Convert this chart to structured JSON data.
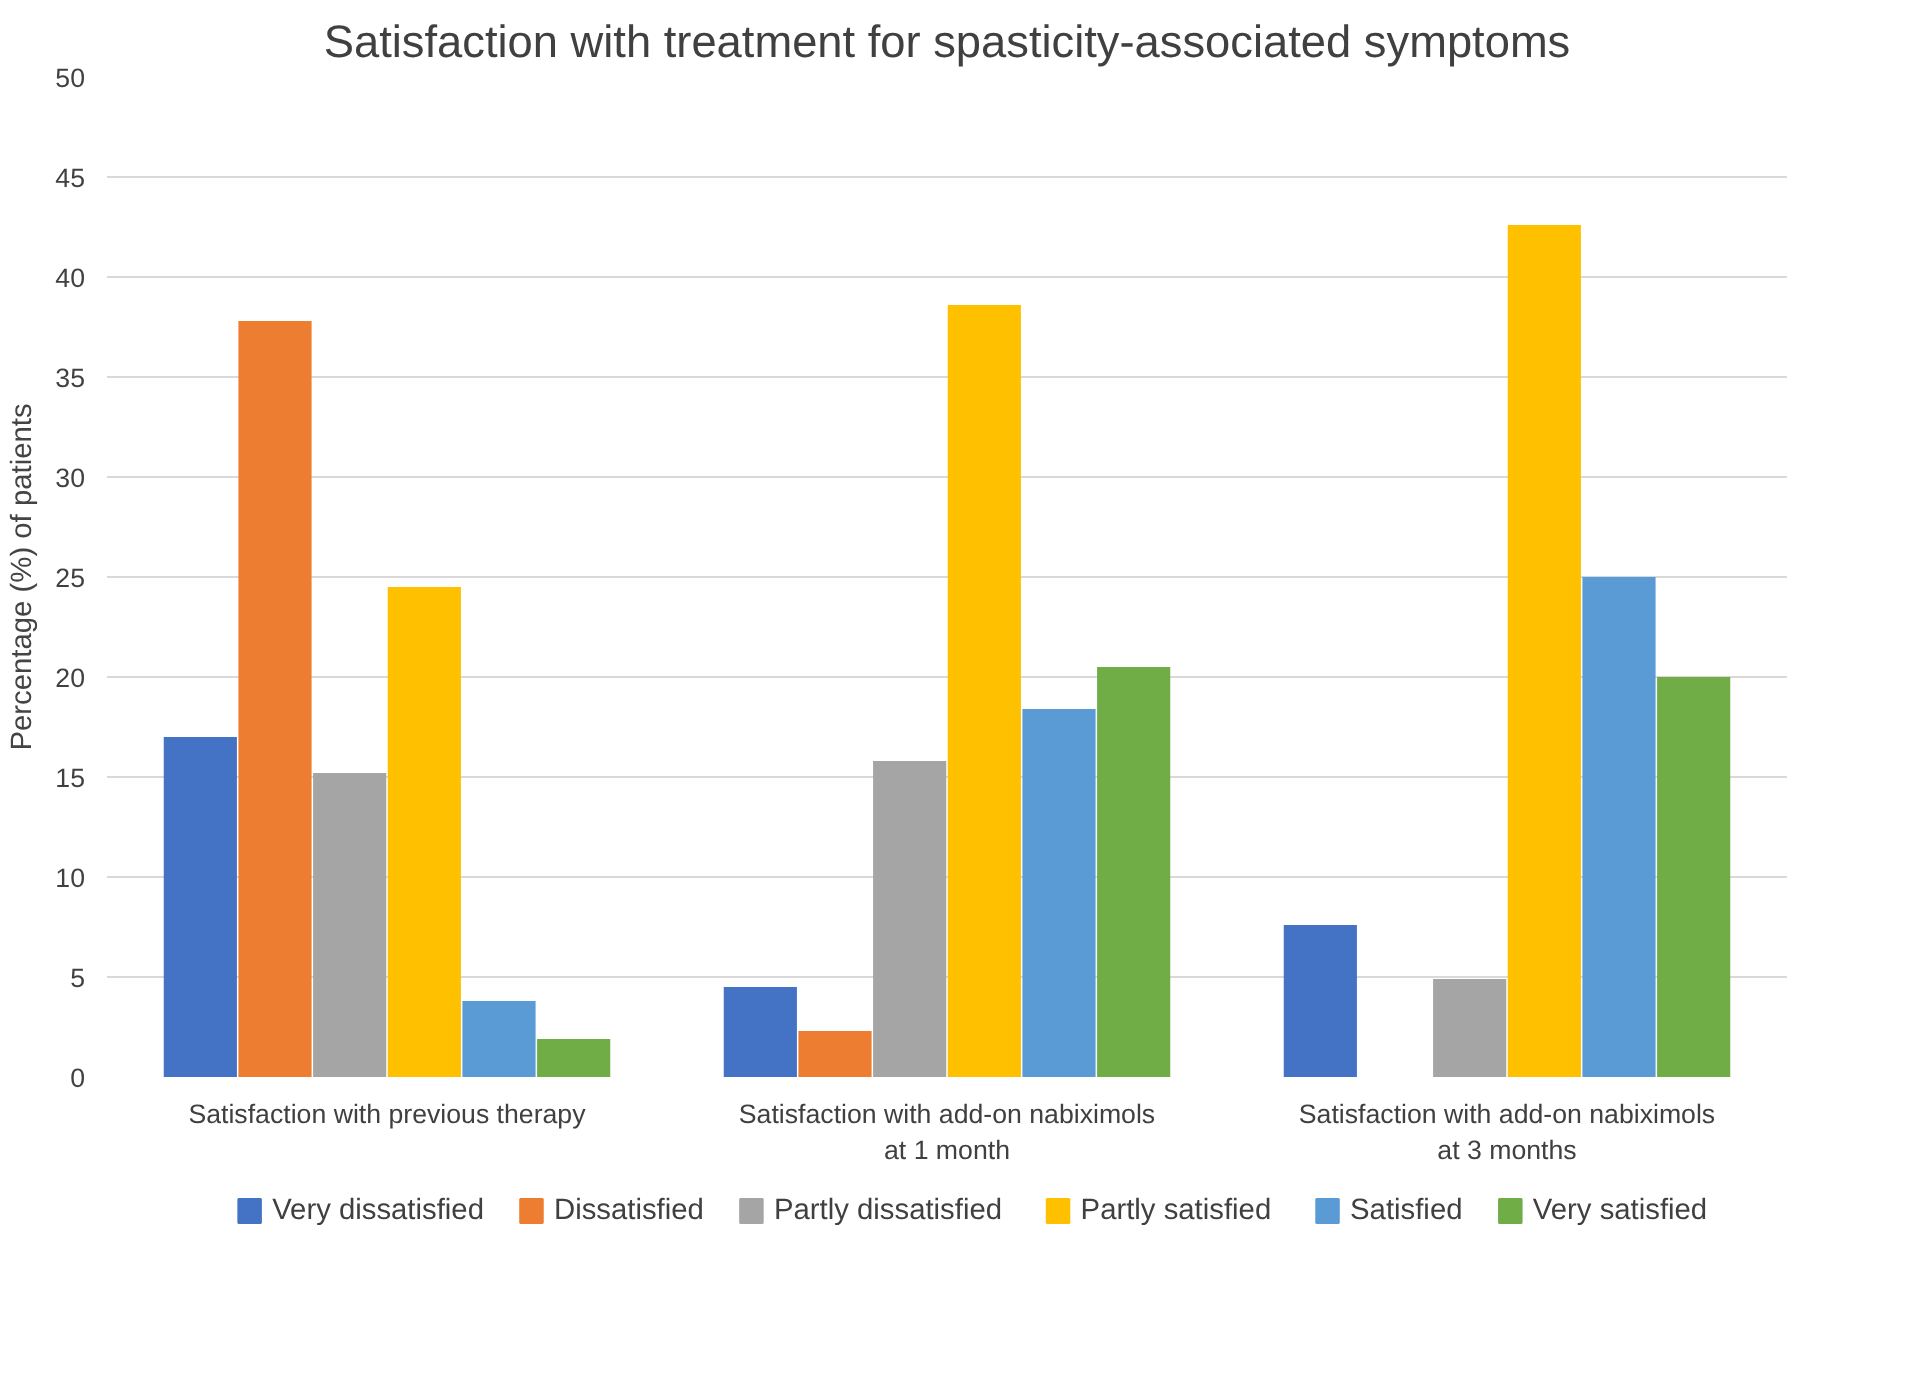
{
  "chart_data": {
    "type": "bar",
    "title": "Satisfaction with treatment for spasticity-associated symptoms",
    "ylabel": "Percentage (%) of patients",
    "categories": [
      "Satisfaction with previous therapy",
      "Satisfaction with add-on nabiximols\nat 1 month",
      "Satisfaction with add-on nabiximols\nat 3 months"
    ],
    "series": [
      {
        "name": "Very dissatisfied",
        "color": "#4472c4",
        "values": [
          17.0,
          4.5,
          7.6
        ]
      },
      {
        "name": "Dissatisfied",
        "color": "#ed7d31",
        "values": [
          37.8,
          2.3,
          0
        ]
      },
      {
        "name": "Partly dissatisfied",
        "color": "#a5a5a5",
        "values": [
          15.2,
          15.8,
          4.9
        ]
      },
      {
        "name": "Partly satisfied",
        "color": "#ffc000",
        "values": [
          24.5,
          38.6,
          42.6
        ]
      },
      {
        "name": "Satisfied",
        "color": "#5b9bd5",
        "values": [
          3.8,
          18.4,
          25.0
        ]
      },
      {
        "name": "Very satisfied",
        "color": "#70ad47",
        "values": [
          1.9,
          20.5,
          20.0
        ]
      }
    ],
    "ylim": [
      0,
      50
    ],
    "yticks": [
      0,
      5,
      10,
      15,
      20,
      25,
      30,
      35,
      40,
      45,
      50
    ],
    "grid": "y",
    "legend": "bottom"
  }
}
